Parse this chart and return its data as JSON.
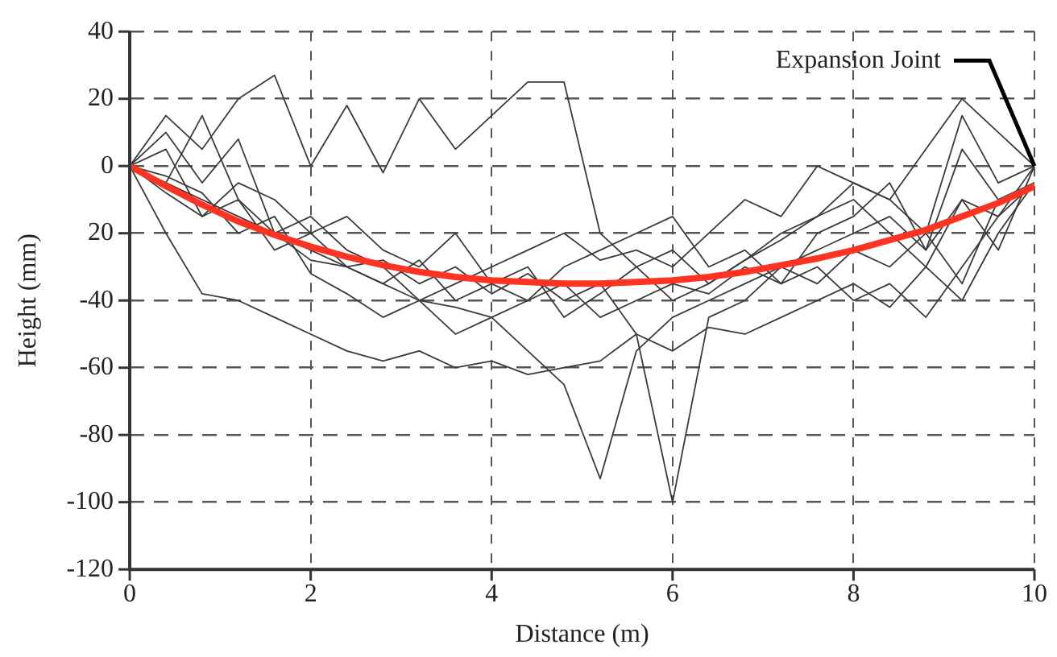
{
  "chart_data": {
    "type": "line",
    "xlabel": "Distance (m)",
    "ylabel": "Height (mm)",
    "x": [
      0,
      0.4,
      0.8,
      1.2,
      1.6,
      2.0,
      2.4,
      2.8,
      3.2,
      3.6,
      4.0,
      4.4,
      4.8,
      5.2,
      5.6,
      6.0,
      6.4,
      6.8,
      7.2,
      7.6,
      8.0,
      8.4,
      8.8,
      9.2,
      9.6,
      10.0
    ],
    "series": [
      {
        "color": "#3a3a3a",
        "values": [
          0,
          15,
          5,
          20,
          27,
          0,
          18,
          -2,
          20,
          5,
          15,
          25,
          25,
          -20,
          -30,
          -25,
          -35,
          -28,
          -22,
          -15,
          -5,
          -10,
          5,
          20,
          10,
          0
        ]
      },
      {
        "color": "#3a3a3a",
        "values": [
          0,
          -5,
          -10,
          -15,
          -20,
          -28,
          -30,
          -35,
          -40,
          -42,
          -45,
          -55,
          -65,
          -93,
          -55,
          -45,
          -40,
          -35,
          -30,
          -25,
          -20,
          -15,
          -25,
          -10,
          -15,
          0
        ]
      },
      {
        "color": "#3a3a3a",
        "values": [
          0,
          -8,
          -15,
          -10,
          -25,
          -20,
          -30,
          -28,
          -35,
          -30,
          -38,
          -32,
          -40,
          -35,
          -50,
          -100,
          -45,
          -40,
          -30,
          -35,
          -25,
          -30,
          -20,
          -35,
          -10,
          -5
        ]
      },
      {
        "color": "#3a3a3a",
        "values": [
          0,
          -20,
          -38,
          -40,
          -45,
          -50,
          -55,
          -58,
          -55,
          -60,
          -58,
          -62,
          -60,
          -58,
          -50,
          -55,
          -48,
          -50,
          -45,
          -40,
          -35,
          -42,
          -30,
          -40,
          -20,
          -5
        ]
      },
      {
        "color": "#3a3a3a",
        "values": [
          0,
          10,
          -5,
          8,
          -20,
          -25,
          -30,
          -35,
          -28,
          -40,
          -35,
          -30,
          -45,
          -38,
          -30,
          -40,
          -35,
          -28,
          -20,
          -15,
          -10,
          -20,
          -30,
          -10,
          -25,
          0
        ]
      },
      {
        "color": "#3a3a3a",
        "values": [
          0,
          5,
          -15,
          -5,
          -10,
          -20,
          -15,
          -25,
          -30,
          -20,
          -35,
          -40,
          -30,
          -25,
          -20,
          -15,
          -30,
          -25,
          -35,
          -20,
          -15,
          -5,
          -25,
          5,
          -10,
          -5
        ]
      },
      {
        "color": "#3a3a3a",
        "values": [
          0,
          -5,
          15,
          -10,
          -20,
          -15,
          -25,
          -30,
          -40,
          -35,
          -30,
          -25,
          -20,
          -28,
          -25,
          -30,
          -20,
          -10,
          -15,
          0,
          -5,
          -10,
          -20,
          15,
          -5,
          0
        ]
      },
      {
        "color": "#3a3a3a",
        "values": [
          0,
          -3,
          -8,
          -20,
          -15,
          -32,
          -38,
          -45,
          -40,
          -50,
          -45,
          -40,
          -35,
          -45,
          -40,
          -35,
          -38,
          -30,
          -35,
          -30,
          -40,
          -35,
          -45,
          -30,
          -15,
          -5
        ]
      },
      {
        "color": "#ff3322",
        "values": [
          0,
          -6,
          -11.5,
          -16.5,
          -20.5,
          -24,
          -27,
          -29.5,
          -31.5,
          -33,
          -34,
          -34.5,
          -35,
          -35,
          -34.5,
          -34,
          -33,
          -31.5,
          -29.5,
          -27.5,
          -25,
          -22,
          -19,
          -15,
          -11,
          -6
        ]
      }
    ],
    "xlim": [
      0,
      10
    ],
    "xticks": [
      0,
      2,
      4,
      6,
      8,
      10
    ],
    "ylim": [
      -120,
      40
    ],
    "yticks": [
      40,
      20,
      0,
      {
        "value": -20,
        "label": "20"
      },
      -40,
      -60,
      -80,
      -100,
      -120
    ],
    "annotations": [
      {
        "text": "Expansion Joint",
        "x": 10,
        "y": 0
      }
    ],
    "grid": true,
    "legend": false,
    "marker": "none",
    "line_style": "solid"
  }
}
